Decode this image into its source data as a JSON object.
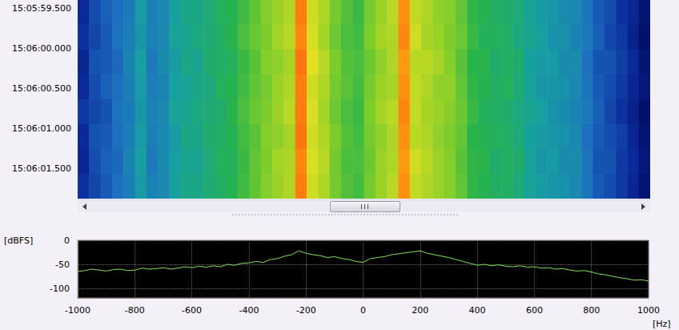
{
  "chart_data": [
    {
      "type": "heatmap",
      "xlim": [
        -1000,
        1000
      ],
      "ylim": [
        359.4,
        361.88
      ],
      "yticks": [
        {
          "value": 359.5,
          "label": "15:05:59.500"
        },
        {
          "value": 360,
          "label": "15:06:00.000"
        },
        {
          "value": 360.5,
          "label": "15:06:00.500"
        },
        {
          "value": 361,
          "label": "15:06:01.000"
        },
        {
          "value": 361.5,
          "label": "15:06:01.500"
        }
      ],
      "tick_labels": "y",
      "x_edges": [
        -1000,
        -960,
        -920,
        -880,
        -840,
        -800,
        -760,
        -720,
        -680,
        -640,
        -600,
        -560,
        -520,
        -480,
        -440,
        -400,
        -360,
        -320,
        -280,
        -240,
        -200,
        -160,
        -120,
        -80,
        -40,
        0,
        40,
        80,
        120,
        160,
        200,
        240,
        280,
        320,
        360,
        400,
        440,
        480,
        520,
        560,
        600,
        640,
        680,
        720,
        760,
        800,
        840,
        880,
        920,
        960,
        1000
      ],
      "y_edges": [
        359.4,
        359.71,
        360.02,
        360.33,
        360.64,
        360.95,
        361.26,
        361.57,
        361.88
      ],
      "cells": [
        [
          -85,
          -80,
          -77,
          -75,
          -73,
          -66,
          -72,
          -70,
          -65,
          -62,
          -62,
          -60,
          -57,
          -56,
          -52,
          -48,
          -44,
          -42,
          -40,
          -22,
          -37,
          -40,
          -46,
          -50,
          -53,
          -46,
          -42,
          -39,
          -24,
          -38,
          -40,
          -43,
          -44,
          -48,
          -54,
          -56,
          -58,
          -59,
          -60,
          -64,
          -66,
          -67,
          -69,
          -70,
          -74,
          -78,
          -80,
          -84,
          -86,
          -90
        ],
        [
          -84,
          -81,
          -78,
          -74,
          -72,
          -67,
          -71,
          -70,
          -64,
          -63,
          -61,
          -60,
          -58,
          -55,
          -51,
          -47,
          -45,
          -41,
          -39,
          -23,
          -36,
          -41,
          -47,
          -51,
          -52,
          -45,
          -41,
          -40,
          -23,
          -37,
          -41,
          -42,
          -45,
          -47,
          -53,
          -57,
          -57,
          -58,
          -61,
          -63,
          -65,
          -68,
          -68,
          -71,
          -73,
          -77,
          -81,
          -83,
          -87,
          -91
        ],
        [
          -86,
          -79,
          -78,
          -76,
          -71,
          -65,
          -73,
          -69,
          -66,
          -62,
          -63,
          -59,
          -58,
          -57,
          -53,
          -49,
          -44,
          -43,
          -41,
          -21,
          -35,
          -39,
          -45,
          -50,
          -51,
          -47,
          -43,
          -40,
          -25,
          -39,
          -39,
          -41,
          -44,
          -49,
          -55,
          -55,
          -59,
          -58,
          -59,
          -65,
          -66,
          -66,
          -69,
          -69,
          -75,
          -79,
          -79,
          -82,
          -85,
          -90
        ],
        [
          -85,
          -80,
          -77,
          -75,
          -72,
          -66,
          -72,
          -71,
          -65,
          -64,
          -62,
          -61,
          -57,
          -56,
          -52,
          -48,
          -46,
          -42,
          -40,
          -22,
          -37,
          -40,
          -46,
          -49,
          -52,
          -46,
          -42,
          -41,
          -24,
          -38,
          -40,
          -43,
          -43,
          -48,
          -54,
          -56,
          -58,
          -57,
          -60,
          -64,
          -67,
          -67,
          -68,
          -70,
          -74,
          -78,
          -80,
          -83,
          -86,
          -89
        ],
        [
          -83,
          -81,
          -79,
          -74,
          -73,
          -67,
          -71,
          -70,
          -64,
          -63,
          -61,
          -60,
          -59,
          -55,
          -51,
          -47,
          -45,
          -42,
          -39,
          -22,
          -36,
          -41,
          -47,
          -51,
          -53,
          -45,
          -41,
          -39,
          -23,
          -38,
          -41,
          -42,
          -44,
          -47,
          -53,
          -57,
          -58,
          -59,
          -61,
          -63,
          -65,
          -68,
          -69,
          -71,
          -73,
          -77,
          -81,
          -84,
          -87,
          -91
        ],
        [
          -85,
          -79,
          -78,
          -75,
          -72,
          -66,
          -72,
          -70,
          -66,
          -62,
          -62,
          -59,
          -58,
          -56,
          -52,
          -49,
          -44,
          -43,
          -41,
          -21,
          -37,
          -40,
          -45,
          -50,
          -52,
          -46,
          -43,
          -40,
          -24,
          -39,
          -40,
          -43,
          -45,
          -48,
          -55,
          -56,
          -57,
          -58,
          -60,
          -65,
          -66,
          -67,
          -68,
          -70,
          -75,
          -78,
          -80,
          -82,
          -86,
          -90
        ],
        [
          -86,
          -80,
          -77,
          -76,
          -71,
          -65,
          -73,
          -69,
          -65,
          -63,
          -63,
          -60,
          -57,
          -57,
          -53,
          -48,
          -45,
          -41,
          -40,
          -23,
          -36,
          -39,
          -46,
          -51,
          -51,
          -47,
          -42,
          -40,
          -25,
          -37,
          -39,
          -42,
          -44,
          -49,
          -54,
          -55,
          -59,
          -58,
          -59,
          -64,
          -67,
          -66,
          -69,
          -69,
          -74,
          -79,
          -79,
          -83,
          -85,
          -89
        ],
        [
          -84,
          -81,
          -78,
          -75,
          -72,
          -66,
          -71,
          -70,
          -65,
          -62,
          -62,
          -60,
          -58,
          -56,
          -52,
          -48,
          -44,
          -42,
          -40,
          -22,
          -37,
          -40,
          -46,
          -50,
          -52,
          -46,
          -42,
          -39,
          -24,
          -38,
          -40,
          -42,
          -44,
          -48,
          -54,
          -56,
          -58,
          -58,
          -60,
          -64,
          -66,
          -67,
          -68,
          -70,
          -74,
          -78,
          -80,
          -83,
          -86,
          -90
        ]
      ],
      "color_range": [
        -95,
        -15
      ]
    },
    {
      "type": "line",
      "xlabel": "[Hz]",
      "ylabel": "[dBFS]",
      "color": "#7fe05a",
      "grid": true,
      "xlim": [
        -1000,
        1000
      ],
      "xticks": [
        -1000,
        -800,
        -600,
        -400,
        -200,
        0,
        200,
        400,
        600,
        800,
        1000
      ],
      "ylim": [
        -120,
        0
      ],
      "yticks": [
        0,
        -50,
        -100
      ],
      "x": [
        -1000,
        -975,
        -950,
        -925,
        -900,
        -875,
        -850,
        -825,
        -800,
        -775,
        -750,
        -725,
        -700,
        -675,
        -650,
        -625,
        -600,
        -575,
        -550,
        -525,
        -500,
        -475,
        -450,
        -425,
        -400,
        -375,
        -350,
        -325,
        -300,
        -275,
        -250,
        -225,
        -200,
        -175,
        -150,
        -125,
        -100,
        -75,
        -50,
        -25,
        0,
        25,
        50,
        75,
        100,
        125,
        150,
        175,
        200,
        225,
        250,
        275,
        300,
        325,
        350,
        375,
        400,
        425,
        450,
        475,
        500,
        525,
        550,
        575,
        600,
        625,
        650,
        675,
        700,
        725,
        750,
        775,
        800,
        825,
        850,
        875,
        900,
        925,
        950,
        975,
        1000
      ],
      "values": [
        -65,
        -63,
        -60,
        -62,
        -64,
        -61,
        -60,
        -63,
        -62,
        -58,
        -60,
        -59,
        -57,
        -60,
        -58,
        -55,
        -57,
        -54,
        -56,
        -53,
        -55,
        -50,
        -52,
        -48,
        -47,
        -44,
        -46,
        -40,
        -38,
        -33,
        -30,
        -22,
        -27,
        -30,
        -32,
        -36,
        -34,
        -38,
        -40,
        -44,
        -46,
        -38,
        -36,
        -34,
        -30,
        -28,
        -26,
        -24,
        -22,
        -27,
        -30,
        -33,
        -36,
        -40,
        -44,
        -48,
        -52,
        -50,
        -53,
        -51,
        -54,
        -55,
        -53,
        -56,
        -55,
        -58,
        -57,
        -60,
        -59,
        -62,
        -64,
        -63,
        -66,
        -70,
        -72,
        -75,
        -78,
        -80,
        -83,
        -82,
        -85
      ]
    }
  ]
}
